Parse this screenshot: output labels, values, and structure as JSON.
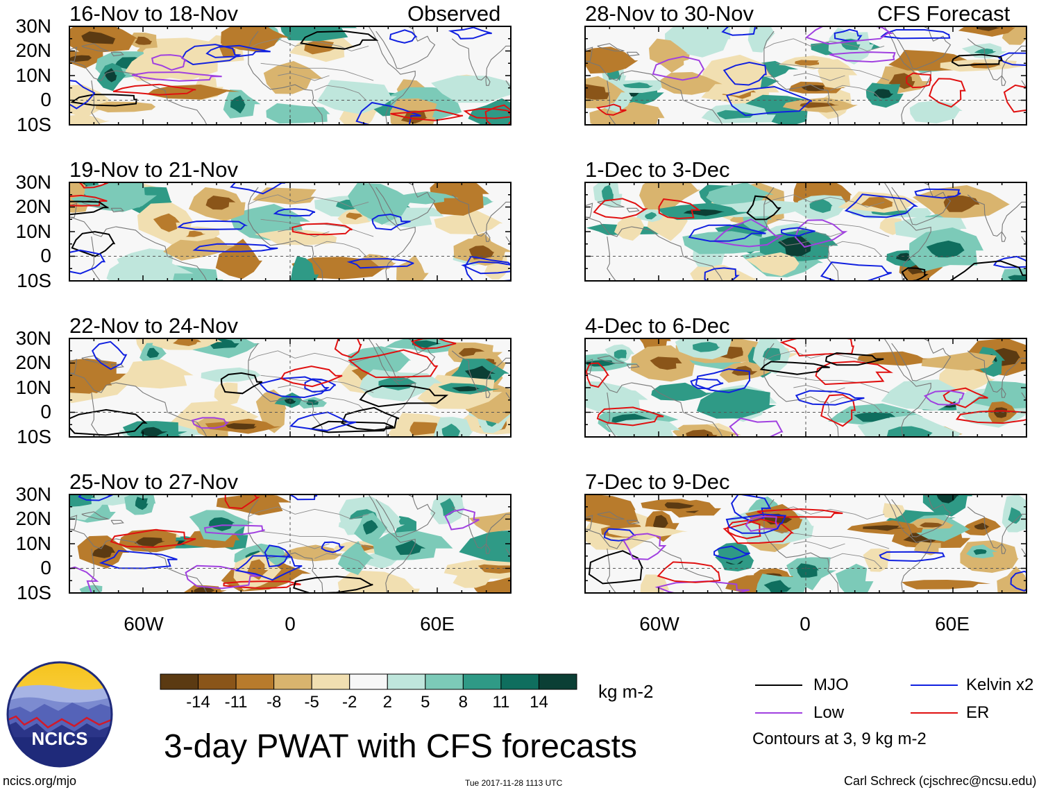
{
  "panels": [
    {
      "id": "obs1",
      "period": "16-Nov to 18-Nov",
      "tag": "Observed"
    },
    {
      "id": "obs2",
      "period": "19-Nov to 21-Nov",
      "tag": ""
    },
    {
      "id": "obs3",
      "period": "22-Nov to 24-Nov",
      "tag": ""
    },
    {
      "id": "obs4",
      "period": "25-Nov to 27-Nov",
      "tag": ""
    },
    {
      "id": "fc1",
      "period": "28-Nov to 30-Nov",
      "tag": "CFS Forecast"
    },
    {
      "id": "fc2",
      "period": "1-Dec to 3-Dec",
      "tag": ""
    },
    {
      "id": "fc3",
      "period": "4-Dec to 6-Dec",
      "tag": ""
    },
    {
      "id": "fc4",
      "period": "7-Dec to 9-Dec",
      "tag": ""
    }
  ],
  "axes": {
    "lat_labels": [
      "30N",
      "20N",
      "10N",
      "0",
      "10S"
    ],
    "lon_labels": [
      "60W",
      "0",
      "60E"
    ]
  },
  "colorbar": {
    "colors": [
      "#5b3a12",
      "#8a5519",
      "#b87b2c",
      "#d9b46e",
      "#f1dfb1",
      "#f7f7f7",
      "#bfe6dc",
      "#7ccab8",
      "#2f9a86",
      "#0f6e5e",
      "#0b3f35"
    ],
    "labels": [
      "-14",
      "-11",
      "-8",
      "-5",
      "-2",
      "2",
      "5",
      "8",
      "11",
      "14"
    ],
    "units": "kg m-2"
  },
  "legend": {
    "items": [
      {
        "label": "MJO",
        "color": "#000000"
      },
      {
        "label": "Kelvin x2",
        "color": "#1020e0"
      },
      {
        "label": "Low",
        "color": "#a040e0"
      },
      {
        "label": "ER",
        "color": "#e01010"
      }
    ],
    "note": "Contours at 3, 9 kg m-2"
  },
  "logo": {
    "text": "NCICS"
  },
  "title": "3-day PWAT with CFS forecasts",
  "footer": {
    "left": "ncics.org/mjo",
    "center": "Tue 2017-11-28 1113 UTC",
    "right": "Carl Schreck (cjschrec@ncsu.edu)"
  }
}
